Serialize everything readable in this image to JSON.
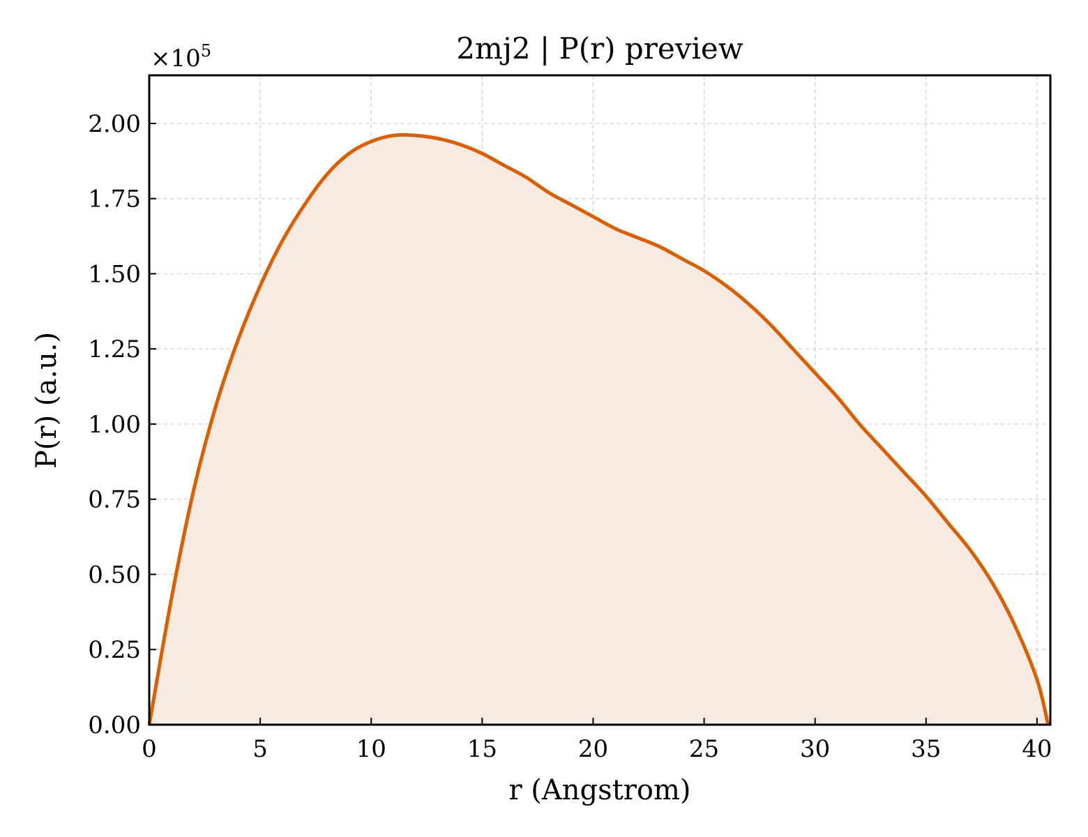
{
  "chart_data": {
    "type": "area",
    "title": "2mj2 | P(r) preview",
    "xlabel": "r (Angstrom)",
    "ylabel": "P(r) (a.u.)",
    "y_scale_label": "×10",
    "y_scale_exponent": "5",
    "xlim": [
      0,
      40.6
    ],
    "ylim": [
      0,
      2.16
    ],
    "y_multiplier": 100000,
    "xticks": [
      0,
      5,
      10,
      15,
      20,
      25,
      30,
      35,
      40
    ],
    "xtick_labels": [
      "0",
      "5",
      "10",
      "15",
      "20",
      "25",
      "30",
      "35",
      "40"
    ],
    "yticks": [
      0,
      0.25,
      0.5,
      0.75,
      1.0,
      1.25,
      1.5,
      1.75,
      2.0
    ],
    "ytick_labels": [
      "0.00",
      "0.25",
      "0.50",
      "0.75",
      "1.00",
      "1.25",
      "1.50",
      "1.75",
      "2.00"
    ],
    "grid": true,
    "line_color": "#d95f02",
    "fill_color": "#f8eae0",
    "series": [
      {
        "x": [
          0,
          1,
          2,
          3,
          4,
          5,
          6,
          7,
          8,
          9,
          10,
          11,
          12,
          13,
          14,
          15,
          16,
          17,
          18,
          19,
          20,
          21,
          22,
          23,
          24,
          25,
          26,
          27,
          28,
          29,
          30,
          31,
          32,
          33,
          34,
          35,
          36,
          37,
          38,
          39,
          40,
          40.5
        ],
        "values": [
          0,
          0.42,
          0.78,
          1.06,
          1.28,
          1.46,
          1.61,
          1.73,
          1.83,
          1.9,
          1.94,
          1.96,
          1.96,
          1.95,
          1.93,
          1.9,
          1.86,
          1.82,
          1.77,
          1.73,
          1.69,
          1.65,
          1.62,
          1.59,
          1.55,
          1.51,
          1.46,
          1.4,
          1.33,
          1.25,
          1.17,
          1.09,
          1.0,
          0.92,
          0.84,
          0.76,
          0.67,
          0.58,
          0.47,
          0.33,
          0.15,
          0
        ]
      }
    ]
  }
}
